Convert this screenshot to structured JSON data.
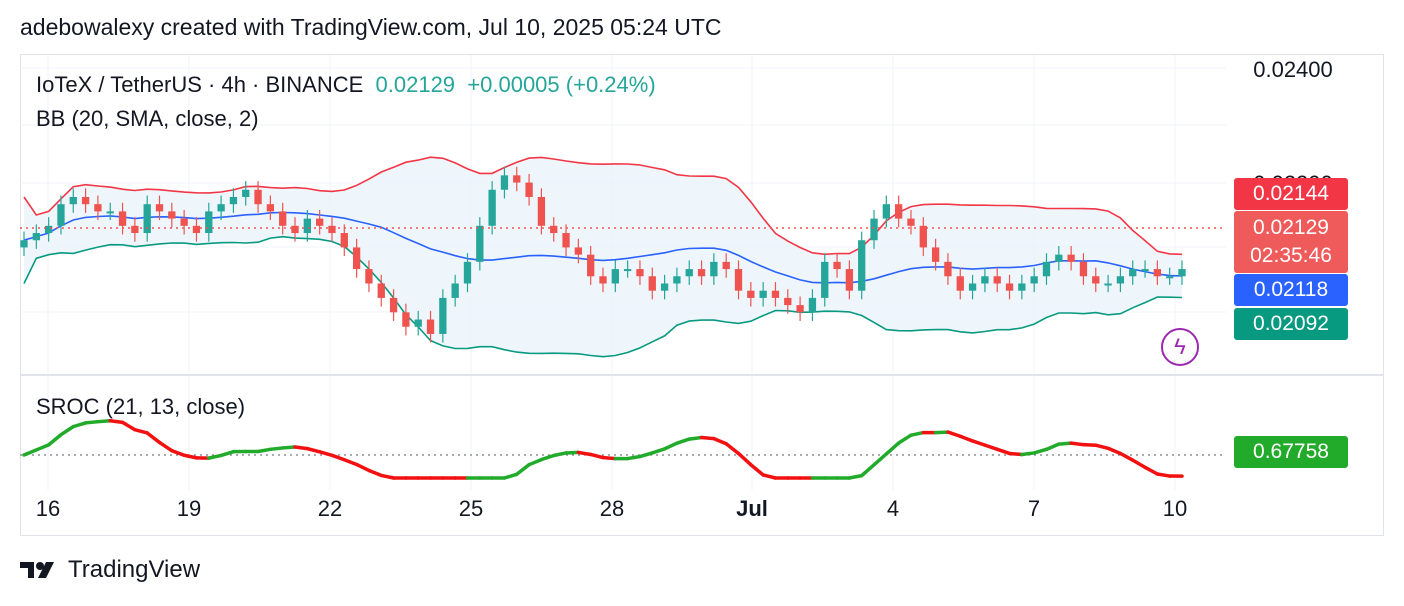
{
  "caption": "adebowalexy created with TradingView.com, Jul 10, 2025 05:24 UTC",
  "brand": "TradingView",
  "legend": {
    "symbol": "IoTeX / TetherUS · 4h · BINANCE",
    "price": "0.02129",
    "change": "+0.00005 (+0.24%)",
    "bb": "BB (20, SMA, close, 2)",
    "sroc": "SROC (21, 13, close)"
  },
  "price_axis": {
    "top_label": "0.02400",
    "hidden_label": "0.02200"
  },
  "tags": {
    "bb_upper": "0.02144",
    "last_price": "0.02129",
    "countdown": "02:35:46",
    "bb_basis": "0.02118",
    "bb_lower": "0.02092",
    "sroc": "0.67758"
  },
  "colors": {
    "up": "#26a69a",
    "down": "#ef5350",
    "bb_upper": "#f23645",
    "bb_basis": "#2962ff",
    "bb_lower": "#089981",
    "bb_fill": "#eaf4fb",
    "sroc_up": "#22ab2b",
    "sroc_down": "#f21010",
    "last_tag": "#ef5350"
  },
  "icons": [
    "tradingview-logo-icon",
    "bolt-icon"
  ],
  "chart_data": {
    "type": "candlestick",
    "x_labels": [
      "16",
      "19",
      "22",
      "25",
      "28",
      "Jul",
      "4",
      "7",
      "10"
    ],
    "price_range": [
      0.0199,
      0.0242
    ],
    "ohlc_closes_approx": [
      0.0217,
      0.0218,
      0.0219,
      0.0222,
      0.0223,
      0.0222,
      0.0221,
      0.0221,
      0.0219,
      0.0218,
      0.0222,
      0.0221,
      0.022,
      0.0219,
      0.0218,
      0.0221,
      0.0222,
      0.0223,
      0.0224,
      0.0222,
      0.0221,
      0.0219,
      0.0218,
      0.022,
      0.0219,
      0.0218,
      0.0216,
      0.0213,
      0.0211,
      0.0209,
      0.0207,
      0.0205,
      0.0206,
      0.0204,
      0.0209,
      0.0211,
      0.0214,
      0.0219,
      0.0224,
      0.0226,
      0.0225,
      0.0223,
      0.0219,
      0.0218,
      0.0216,
      0.0215,
      0.0212,
      0.0211,
      0.0213,
      0.0213,
      0.0212,
      0.021,
      0.0211,
      0.0212,
      0.0213,
      0.0212,
      0.0214,
      0.0213,
      0.021,
      0.0209,
      0.021,
      0.0209,
      0.0208,
      0.0207,
      0.0209,
      0.0214,
      0.0213,
      0.021,
      0.0217,
      0.022,
      0.0222,
      0.022,
      0.0219,
      0.0216,
      0.0214,
      0.0212,
      0.021,
      0.0211,
      0.0212,
      0.0211,
      0.021,
      0.0211,
      0.0212,
      0.0214,
      0.0215,
      0.0214,
      0.0212,
      0.0211,
      0.0211,
      0.0212,
      0.0213,
      0.0213,
      0.0212,
      0.0212,
      0.0213
    ],
    "bollinger": {
      "period": 20,
      "stddev": 2,
      "last_upper": 0.02144,
      "last_basis": 0.02118,
      "last_lower": 0.02092
    },
    "last_price": 0.02129,
    "sroc": {
      "period": 21,
      "smooth": 13,
      "last": 0.67758
    }
  }
}
